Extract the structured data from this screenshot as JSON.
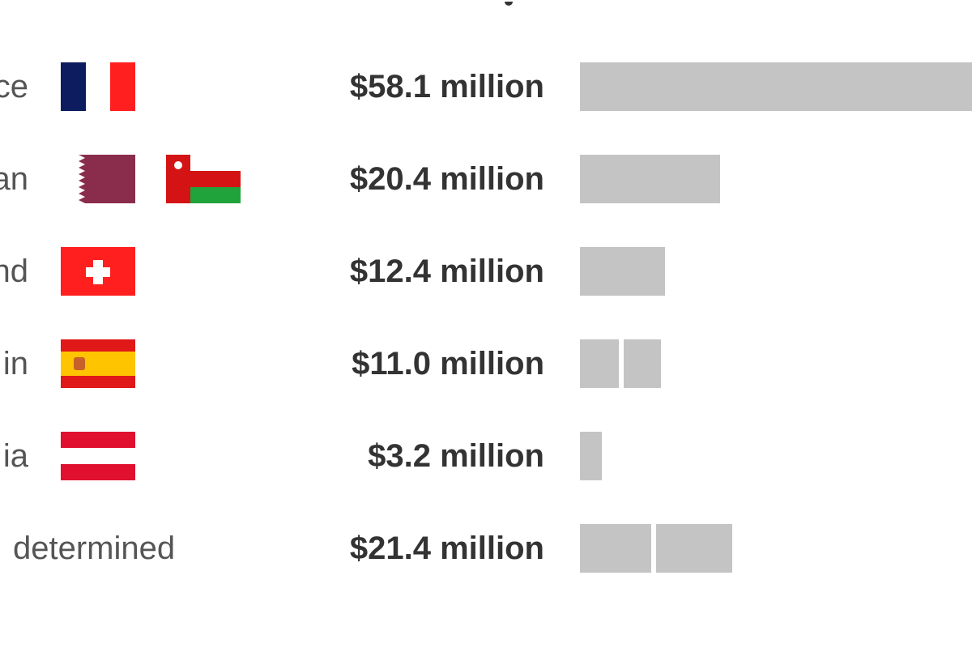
{
  "chart_data": {
    "type": "bar",
    "orientation": "horizontal",
    "title": "",
    "xlabel": "",
    "ylabel": "",
    "bar_color": "#c4c4c4",
    "value_unit": "million USD",
    "rows": [
      {
        "id": "france",
        "label": "ce",
        "value": 58.1,
        "value_label": "$58.1 million",
        "flags": [
          "france-flag"
        ],
        "segments": [
          58.1
        ]
      },
      {
        "id": "qatar-oman",
        "label": "an",
        "value": 20.4,
        "value_label": "$20.4 million",
        "flags": [
          "qatar-flag",
          "oman-flag"
        ],
        "segments": [
          20.4
        ]
      },
      {
        "id": "switzerland",
        "label": "nd",
        "value": 12.4,
        "value_label": "$12.4 million",
        "flags": [
          "switzerland-flag"
        ],
        "segments": [
          12.4
        ]
      },
      {
        "id": "spain",
        "label": "in",
        "value": 11.0,
        "value_label": "$11.0 million",
        "flags": [
          "spain-flag"
        ],
        "segments": [
          5.6,
          5.4
        ]
      },
      {
        "id": "austria",
        "label": "ia",
        "value": 3.2,
        "value_label": "$3.2 million",
        "flags": [
          "austria-flag"
        ],
        "segments": [
          3.2
        ]
      },
      {
        "id": "undetermined",
        "label": "determined",
        "value": 21.4,
        "value_label": "$21.4 million",
        "flags": [],
        "segments": [
          10.4,
          11.0
        ]
      }
    ]
  },
  "colors": {
    "bar": "#c4c4c4",
    "amount_text": "#333333",
    "country_text": "#555555",
    "france_blue": "#0c1c5e",
    "france_red": "#ff1f1f",
    "qatar_maroon": "#8a2d4c",
    "oman_red": "#d41414",
    "oman_green": "#1fa33a",
    "swiss_red": "#ff1f1f",
    "spain_red": "#e01818",
    "spain_yellow": "#ffc400",
    "austria_red": "#e0102e"
  }
}
